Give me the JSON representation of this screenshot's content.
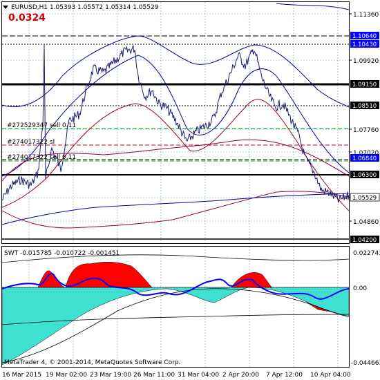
{
  "header": {
    "symbol_info": "EURUSD,H1  1.05393 1.05572 1.05314 1.05529",
    "value_label": "0.0324",
    "value_color": "#cc0000"
  },
  "price_axis": {
    "ticks": [
      "1.11360",
      "1.09920",
      "1.07760",
      "1.07020",
      "1.05600",
      "1.04860"
    ],
    "price_tags": [
      {
        "label": "1.10640",
        "bg": "#0000ff"
      },
      {
        "label": "1.10430",
        "bg": "#0000ff"
      },
      {
        "label": "1.09150",
        "bg": "#000000"
      },
      {
        "label": "1.08510",
        "bg": "#000000"
      },
      {
        "label": "1.06840",
        "bg": "#0000ff"
      },
      {
        "label": "1.06300",
        "bg": "#000000"
      },
      {
        "label": "1.05529",
        "bg": "#ffffff"
      },
      {
        "label": "1.04200",
        "bg": "#000000"
      }
    ]
  },
  "orders": [
    {
      "label": "#272529347 sell 0.11"
    },
    {
      "label": "#274017322 sl"
    },
    {
      "label": "#274017322 sell 0.11"
    }
  ],
  "indicator": {
    "label": "SWT -0.015785 -0.010722 -0.001451",
    "ticks": [
      "0.022741",
      "0.00",
      "-0.044663"
    ]
  },
  "time_axis": {
    "ticks": [
      "16 Mar 2015",
      "19 Mar 02:00",
      "23 Mar 19:00",
      "26 Mar 11:00",
      "31 Mar 04:00",
      "2 Apr 20:00",
      "7 Apr 12:00",
      "10 Apr 04:00"
    ]
  },
  "copyright": "MetaTrader 4, © 2001-2014, MetaQuotes Software Corp.",
  "colors": {
    "price": "#1a1a6e",
    "band_blue": "#0000aa",
    "band_red": "#990033",
    "grid": "#6699cc",
    "hist_red": "#ff0000",
    "hist_cyan": "#40e0d0",
    "order_green": "#009900",
    "order_red": "#cc0000"
  }
}
